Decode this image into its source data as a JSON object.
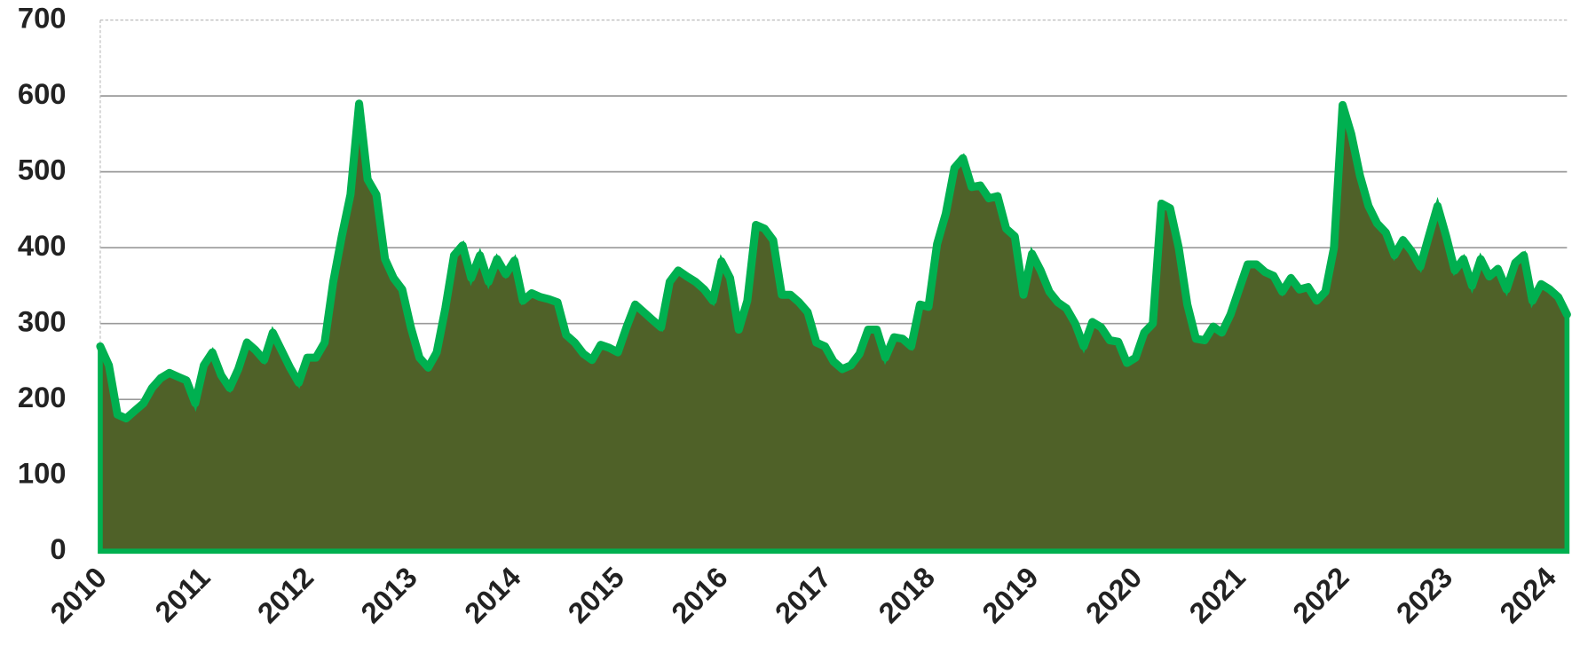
{
  "chart_data": {
    "type": "area",
    "x": [
      2010,
      2010.083,
      2010.167,
      2010.25,
      2010.333,
      2010.417,
      2010.5,
      2010.583,
      2010.667,
      2010.75,
      2010.833,
      2010.917,
      2011,
      2011.083,
      2011.167,
      2011.25,
      2011.333,
      2011.417,
      2011.5,
      2011.583,
      2011.667,
      2011.75,
      2011.833,
      2011.917,
      2012,
      2012.083,
      2012.167,
      2012.25,
      2012.333,
      2012.417,
      2012.5,
      2012.583,
      2012.667,
      2012.75,
      2012.833,
      2012.917,
      2013,
      2013.083,
      2013.167,
      2013.25,
      2013.333,
      2013.417,
      2013.5,
      2013.583,
      2013.667,
      2013.75,
      2013.833,
      2013.917,
      2014,
      2014.083,
      2014.167,
      2014.25,
      2014.333,
      2014.417,
      2014.5,
      2014.583,
      2014.667,
      2014.75,
      2014.833,
      2014.917,
      2015,
      2015.083,
      2015.167,
      2015.25,
      2015.333,
      2015.417,
      2015.5,
      2015.583,
      2015.667,
      2015.75,
      2015.833,
      2015.917,
      2016,
      2016.083,
      2016.167,
      2016.25,
      2016.333,
      2016.417,
      2016.5,
      2016.583,
      2016.667,
      2016.75,
      2016.833,
      2016.917,
      2017,
      2017.083,
      2017.167,
      2017.25,
      2017.333,
      2017.417,
      2017.5,
      2017.583,
      2017.667,
      2017.75,
      2017.833,
      2017.917,
      2018,
      2018.083,
      2018.167,
      2018.25,
      2018.333,
      2018.417,
      2018.5,
      2018.583,
      2018.667,
      2018.75,
      2018.833,
      2018.917,
      2019,
      2019.083,
      2019.167,
      2019.25,
      2019.333,
      2019.417,
      2019.5,
      2019.583,
      2019.667,
      2019.75,
      2019.833,
      2019.917,
      2020,
      2020.083,
      2020.167,
      2020.25,
      2020.333,
      2020.417,
      2020.5,
      2020.583,
      2020.667,
      2020.75,
      2020.833,
      2020.917,
      2021,
      2021.083,
      2021.167,
      2021.25,
      2021.333,
      2021.417,
      2021.5,
      2021.583,
      2021.667,
      2021.75,
      2021.833,
      2021.917,
      2022,
      2022.083,
      2022.167,
      2022.25,
      2022.333,
      2022.417,
      2022.5,
      2022.583,
      2022.667,
      2022.75,
      2022.833,
      2022.917,
      2023,
      2023.083,
      2023.167,
      2023.25,
      2023.333,
      2023.417,
      2023.5,
      2023.583,
      2023.667,
      2023.75,
      2023.833,
      2023.917,
      2024,
      2024.083,
      2024.167
    ],
    "values": [
      270,
      245,
      180,
      175,
      185,
      195,
      215,
      228,
      235,
      230,
      225,
      195,
      245,
      262,
      232,
      215,
      240,
      275,
      265,
      252,
      288,
      265,
      242,
      222,
      255,
      255,
      275,
      355,
      415,
      470,
      590,
      490,
      470,
      385,
      360,
      345,
      295,
      255,
      242,
      262,
      320,
      390,
      403,
      360,
      390,
      355,
      385,
      365,
      383,
      330,
      340,
      335,
      332,
      328,
      285,
      275,
      260,
      252,
      272,
      268,
      262,
      295,
      325,
      315,
      305,
      295,
      355,
      370,
      362,
      355,
      345,
      330,
      382,
      360,
      292,
      330,
      430,
      425,
      410,
      338,
      338,
      328,
      315,
      275,
      270,
      250,
      240,
      245,
      260,
      292,
      292,
      255,
      282,
      280,
      270,
      325,
      322,
      405,
      445,
      505,
      518,
      480,
      482,
      465,
      468,
      425,
      415,
      338,
      392,
      370,
      342,
      328,
      320,
      300,
      270,
      302,
      295,
      278,
      276,
      248,
      255,
      288,
      300,
      458,
      452,
      400,
      325,
      280,
      278,
      296,
      288,
      312,
      345,
      378,
      378,
      368,
      363,
      342,
      360,
      345,
      348,
      330,
      342,
      400,
      588,
      550,
      495,
      455,
      432,
      420,
      390,
      410,
      395,
      375,
      415,
      455,
      415,
      370,
      385,
      350,
      385,
      362,
      372,
      345,
      380,
      390,
      330,
      352,
      345,
      335,
      312
    ],
    "fill": "#4f6128",
    "color": "#00b050",
    "xlim": [
      2010,
      2024.167
    ],
    "xticks": [
      2010,
      2011,
      2012,
      2013,
      2014,
      2015,
      2016,
      2017,
      2018,
      2019,
      2020,
      2021,
      2022,
      2023,
      2024
    ],
    "ylim": [
      0,
      700
    ],
    "yticks": [
      0,
      100,
      200,
      300,
      400,
      500,
      600,
      700
    ],
    "grid": true
  }
}
